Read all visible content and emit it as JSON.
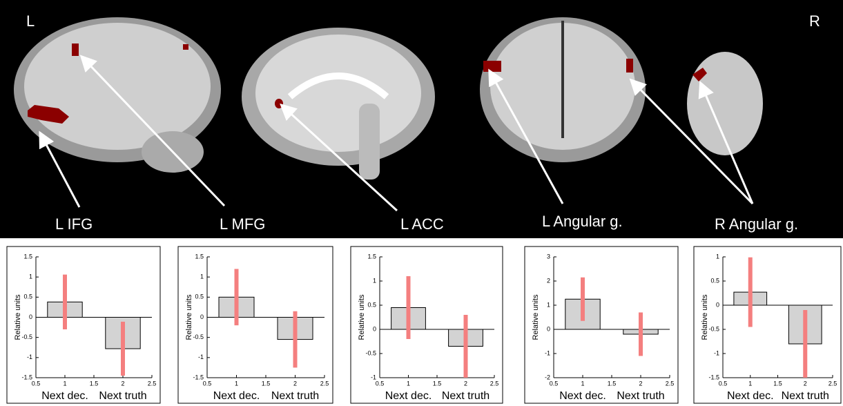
{
  "figure": {
    "hemisphere_left": "L",
    "hemisphere_right": "R",
    "regions": [
      "L IFG",
      "L MFG",
      "L ACC",
      "L Angular g.",
      "R Angular g."
    ]
  },
  "chart_data": [
    {
      "type": "bar",
      "ylabel": "Relative units",
      "categories": [
        "Next dec.",
        "Next truth"
      ],
      "x": [
        1,
        2
      ],
      "values": [
        0.38,
        -0.78
      ],
      "errors": [
        0.68,
        0.67
      ],
      "color": "#d3d3d3",
      "error_color": "#f47f7f",
      "xlim": [
        0.5,
        2.5
      ],
      "xticks": [
        0.5,
        1,
        1.5,
        2,
        2.5
      ],
      "ylim": [
        -1.5,
        1.5
      ],
      "yticks": [
        -1.5,
        -1,
        -0.5,
        0,
        0.5,
        1,
        1.5
      ]
    },
    {
      "type": "bar",
      "ylabel": "Relative units",
      "categories": [
        "Next dec.",
        "Next truth"
      ],
      "x": [
        1,
        2
      ],
      "values": [
        0.5,
        -0.55
      ],
      "errors": [
        0.7,
        0.7
      ],
      "color": "#d3d3d3",
      "error_color": "#f47f7f",
      "xlim": [
        0.5,
        2.5
      ],
      "xticks": [
        0.5,
        1,
        1.5,
        2,
        2.5
      ],
      "ylim": [
        -1.5,
        1.5
      ],
      "yticks": [
        -1.5,
        -1,
        -0.5,
        0,
        0.5,
        1,
        1.5
      ]
    },
    {
      "type": "bar",
      "ylabel": "Relative units",
      "categories": [
        "Next dec.",
        "Next truth"
      ],
      "x": [
        1,
        2
      ],
      "values": [
        0.45,
        -0.35
      ],
      "errors": [
        0.65,
        0.65
      ],
      "color": "#d3d3d3",
      "error_color": "#f47f7f",
      "xlim": [
        0.5,
        2.5
      ],
      "xticks": [
        0.5,
        1,
        1.5,
        2,
        2.5
      ],
      "ylim": [
        -1,
        1.5
      ],
      "yticks": [
        -1,
        -0.5,
        0,
        0.5,
        1,
        1.5
      ]
    },
    {
      "type": "bar",
      "ylabel": "Relative units",
      "categories": [
        "Next dec.",
        "Next truth"
      ],
      "x": [
        1,
        2
      ],
      "values": [
        1.25,
        -0.2
      ],
      "errors": [
        0.9,
        0.9
      ],
      "color": "#d3d3d3",
      "error_color": "#f47f7f",
      "xlim": [
        0.5,
        2.5
      ],
      "xticks": [
        0.5,
        1,
        1.5,
        2,
        2.5
      ],
      "ylim": [
        -2,
        3
      ],
      "yticks": [
        -2,
        -1,
        0,
        1,
        2,
        3
      ]
    },
    {
      "type": "bar",
      "ylabel": "Relative units",
      "categories": [
        "Next dec.",
        "Next truth"
      ],
      "x": [
        1,
        2
      ],
      "values": [
        0.27,
        -0.8
      ],
      "errors": [
        0.72,
        0.7
      ],
      "color": "#d3d3d3",
      "error_color": "#f47f7f",
      "xlim": [
        0.5,
        2.5
      ],
      "xticks": [
        0.5,
        1,
        1.5,
        2,
        2.5
      ],
      "ylim": [
        -1.5,
        1
      ],
      "yticks": [
        -1.5,
        -1,
        -0.5,
        0,
        0.5,
        1
      ]
    }
  ]
}
